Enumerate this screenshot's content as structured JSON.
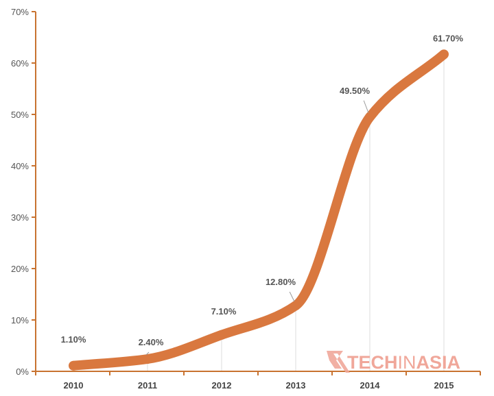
{
  "chart_data": {
    "type": "line",
    "title": "",
    "xlabel": "",
    "ylabel": "",
    "categories": [
      "2010",
      "2011",
      "2012",
      "2013",
      "2014",
      "2015"
    ],
    "values": [
      1.1,
      2.4,
      7.1,
      12.8,
      49.5,
      61.7
    ],
    "data_labels": [
      "1.10%",
      "2.40%",
      "7.10%",
      "12.80%",
      "49.50%",
      "61.70%"
    ],
    "y_ticks": [
      "0%",
      "10%",
      "20%",
      "30%",
      "40%",
      "50%",
      "60%",
      "70%"
    ],
    "ylim": [
      0,
      70
    ],
    "grid": "vertical lines at categories",
    "line_color": "#d9783f",
    "axis_color": "#c8722f",
    "smooth": true
  },
  "watermark": {
    "part1": "TECH",
    "part2": "IN",
    "part3": "ASIA",
    "color": "#f0a79a"
  }
}
